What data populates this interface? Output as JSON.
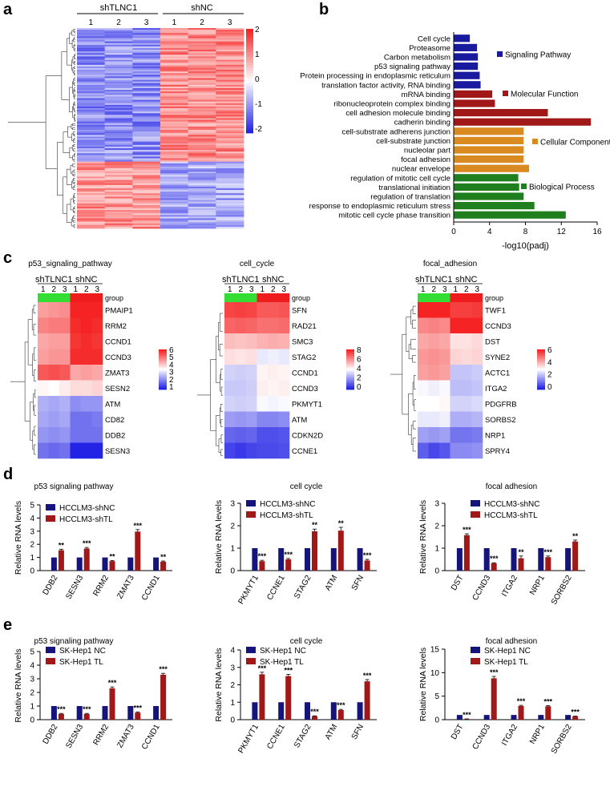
{
  "panels": {
    "a": "a",
    "b": "b",
    "c": "c",
    "d": "d",
    "e": "e"
  },
  "panel_a": {
    "groups": [
      {
        "label": "shTLNC1",
        "samples": [
          "1",
          "2",
          "3"
        ]
      },
      {
        "label": "shNC",
        "samples": [
          "1",
          "2",
          "3"
        ]
      }
    ],
    "colorbar": [
      "2",
      "1",
      "0",
      "-1",
      "-2"
    ],
    "colors": {
      "high": "#ff2020",
      "mid": "#ffffff",
      "low": "#2222ee"
    }
  },
  "chart_data": [
    {
      "panel": "b",
      "type": "bar",
      "orientation": "horizontal",
      "xlabel": "-log10(padj)",
      "xlim": [
        0,
        16
      ],
      "xticks": [
        "0",
        "4",
        "8",
        "12",
        "16"
      ],
      "categories": [
        "Cell cycle",
        "Proteasome",
        "Carbon metabolism",
        "p53 signaling pathway",
        "Protein processing in endoplasmic reticulum",
        "translation factor activity, RNA binding",
        "mRNA binding",
        "ribonucleoprotein complex binding",
        "cell adhesion molecule binding",
        "cadherin binding",
        "cell-substrate adherens junction",
        "cell-substrate junction",
        "nucleolar part",
        "focal adhesion",
        "nuclear envelope",
        "regulation of mitotic cell cycle",
        "translational initiation",
        "regulation of translation",
        "response to endoplasmic reticulum stress",
        "mitotic cell cycle phase transition"
      ],
      "values": [
        1.8,
        2.6,
        2.7,
        2.7,
        2.9,
        3.0,
        4.3,
        4.6,
        10.5,
        15.3,
        7.8,
        7.8,
        7.8,
        7.8,
        8.4,
        7.2,
        7.3,
        7.8,
        9.0,
        12.5
      ],
      "groups": [
        0,
        0,
        0,
        0,
        0,
        0,
        1,
        1,
        1,
        1,
        2,
        2,
        2,
        2,
        2,
        3,
        3,
        3,
        3,
        3
      ],
      "legend": [
        {
          "name": "Signaling Pathway",
          "color": "#1a1a9e"
        },
        {
          "name": "Molecular Function",
          "color": "#a01818"
        },
        {
          "name": "Cellular Component",
          "color": "#d98a20"
        },
        {
          "name": "Biological Process",
          "color": "#1f7f1f"
        }
      ]
    },
    {
      "panel": "c",
      "type": "heatmap",
      "title": "p53_signaling_pathway",
      "groups": [
        "shTLNC1",
        "shNC"
      ],
      "samples": [
        "1",
        "2",
        "3",
        "1",
        "2",
        "3"
      ],
      "group_row": "group",
      "rows": [
        "PMAIP1",
        "RRM2",
        "CCND1",
        "CCND3",
        "ZMAT3",
        "SESN2",
        "ATM",
        "CD82",
        "DDB2",
        "SESN3"
      ],
      "values": [
        [
          4.6,
          4.7,
          4.8,
          6.0,
          6.0,
          6.0
        ],
        [
          4.9,
          5.0,
          5.0,
          5.9,
          6.0,
          5.9
        ],
        [
          4.5,
          4.6,
          4.6,
          5.8,
          5.9,
          5.8
        ],
        [
          4.6,
          4.7,
          4.7,
          5.9,
          5.9,
          5.9
        ],
        [
          5.4,
          5.5,
          5.4,
          4.5,
          4.6,
          4.5
        ],
        [
          3.6,
          3.5,
          3.7,
          3.9,
          3.9,
          4.0
        ],
        [
          2.6,
          2.5,
          2.6,
          2.2,
          2.3,
          2.3
        ],
        [
          2.5,
          2.4,
          2.5,
          1.9,
          1.9,
          2.0
        ],
        [
          2.3,
          2.2,
          2.3,
          1.9,
          1.9,
          1.9
        ],
        [
          1.9,
          1.8,
          1.9,
          1.0,
          1.0,
          1.0
        ]
      ],
      "colorbar": {
        "ticks": [
          "6",
          "5",
          "4",
          "3",
          "2",
          "1"
        ],
        "min": 1,
        "max": 6
      }
    },
    {
      "panel": "c",
      "type": "heatmap",
      "title": "cell_cycle",
      "groups": [
        "shTLNC1",
        "shNC"
      ],
      "samples": [
        "1",
        "2",
        "3",
        "1",
        "2",
        "3"
      ],
      "group_row": "group",
      "rows": [
        "SFN",
        "RAD21",
        "SMC3",
        "STAG2",
        "CCND1",
        "CCND3",
        "PKMYT1",
        "ATM",
        "CDKN2D",
        "CCNE1"
      ],
      "values": [
        [
          7.4,
          7.5,
          7.4,
          7.0,
          7.0,
          7.1
        ],
        [
          6.8,
          6.9,
          6.8,
          6.6,
          6.6,
          6.7
        ],
        [
          5.2,
          5.1,
          5.2,
          5.4,
          5.5,
          5.4
        ],
        [
          4.6,
          4.5,
          4.6,
          3.6,
          3.7,
          3.6
        ],
        [
          3.2,
          3.1,
          3.2,
          4.2,
          4.3,
          4.2
        ],
        [
          3.0,
          3.0,
          3.1,
          4.3,
          4.2,
          4.3
        ],
        [
          3.2,
          3.1,
          3.2,
          3.9,
          3.8,
          3.9
        ],
        [
          2.2,
          2.1,
          2.2,
          1.8,
          1.8,
          1.9
        ],
        [
          1.2,
          1.1,
          1.2,
          0.8,
          0.8,
          0.9
        ],
        [
          0.6,
          0.4,
          0.6,
          0.7,
          0.7,
          0.8
        ]
      ],
      "colorbar": {
        "ticks": [
          "8",
          "6",
          "4",
          "2",
          "0"
        ],
        "min": 0,
        "max": 8
      }
    },
    {
      "panel": "c",
      "type": "heatmap",
      "title": "focal_adhesion",
      "groups": [
        "shTLNC1",
        "shNC"
      ],
      "samples": [
        "1",
        "2",
        "3",
        "1",
        "2",
        "3"
      ],
      "group_row": "group",
      "rows": [
        "TWF1",
        "CCND3",
        "DST",
        "SYNE2",
        "ACTC1",
        "ITGA2",
        "PDGFRB",
        "SORBS2",
        "NRP1",
        "SPRY4"
      ],
      "values": [
        [
          6.2,
          6.3,
          6.2,
          5.6,
          5.6,
          5.7
        ],
        [
          4.6,
          4.7,
          4.6,
          6.0,
          6.0,
          6.1
        ],
        [
          4.2,
          4.3,
          4.2,
          3.4,
          3.4,
          3.5
        ],
        [
          4.4,
          4.5,
          4.4,
          3.6,
          3.5,
          3.6
        ],
        [
          4.3,
          4.4,
          4.3,
          2.2,
          2.2,
          2.3
        ],
        [
          2.9,
          2.8,
          2.9,
          2.1,
          2.1,
          2.2
        ],
        [
          3.0,
          3.0,
          3.1,
          2.4,
          2.4,
          2.5
        ],
        [
          2.7,
          2.7,
          2.8,
          1.9,
          1.9,
          2.0
        ],
        [
          1.7,
          1.6,
          1.7,
          1.1,
          1.1,
          1.2
        ],
        [
          0.8,
          0.5,
          0.7,
          1.4,
          1.4,
          1.5
        ]
      ],
      "colorbar": {
        "ticks": [
          "6",
          "4",
          "2",
          "0"
        ],
        "min": 0,
        "max": 6
      }
    },
    {
      "panel": "d",
      "type": "bar",
      "title": "p53 signaling pathway",
      "ylabel": "Relative RNA levels",
      "ylim": [
        0,
        5
      ],
      "yticks": [
        "0",
        "1",
        "2",
        "3",
        "4",
        "5"
      ],
      "categories": [
        "DDB2",
        "SESN3",
        "RRM2",
        "ZMAT3",
        "CCND1"
      ],
      "series": [
        {
          "name": "HCCLM3-shNC",
          "values": [
            1,
            1,
            1,
            1,
            1
          ],
          "color": "#14147a"
        },
        {
          "name": "HCCLM3-shTL",
          "values": [
            1.55,
            1.68,
            0.72,
            2.97,
            0.68
          ],
          "errors": [
            0.08,
            0.08,
            0.05,
            0.15,
            0.05
          ],
          "color": "#a01818"
        }
      ],
      "significance": [
        "**",
        "***",
        "**",
        "***",
        "**"
      ]
    },
    {
      "panel": "d",
      "type": "bar",
      "title": "cell cycle",
      "ylabel": "Relative RNA levels",
      "ylim": [
        0,
        3
      ],
      "yticks": [
        "0",
        "1",
        "2",
        "3"
      ],
      "categories": [
        "PKMYT1",
        "CCNE1",
        "STAG2",
        "ATM",
        "SFN"
      ],
      "series": [
        {
          "name": "HCCLM3-shNC",
          "values": [
            1,
            1,
            1,
            1,
            1
          ],
          "color": "#14147a"
        },
        {
          "name": "HCCLM3-shTL",
          "values": [
            0.42,
            0.5,
            1.75,
            1.78,
            0.45
          ],
          "errors": [
            0.04,
            0.04,
            0.1,
            0.15,
            0.05
          ],
          "color": "#a01818"
        }
      ],
      "significance": [
        "***",
        "***",
        "**",
        "**",
        "***"
      ]
    },
    {
      "panel": "d",
      "type": "bar",
      "title": "focal adhesion",
      "ylabel": "Relative RNA levels",
      "ylim": [
        0,
        3
      ],
      "yticks": [
        "0",
        "1",
        "2",
        "3"
      ],
      "categories": [
        "DST",
        "CCND3",
        "ITGA2",
        "NRP1",
        "SORBS2"
      ],
      "series": [
        {
          "name": "HCCLM3-shNC",
          "values": [
            1,
            1,
            1,
            1,
            1
          ],
          "color": "#14147a"
        },
        {
          "name": "HCCLM3-shTL",
          "values": [
            1.58,
            0.33,
            0.55,
            0.6,
            1.3
          ],
          "errors": [
            0.06,
            0.02,
            0.1,
            0.05,
            0.06
          ],
          "color": "#a01818"
        }
      ],
      "significance": [
        "***",
        "***",
        "**",
        "***",
        "**"
      ]
    },
    {
      "panel": "e",
      "type": "bar",
      "title": "p53 signaling pathway",
      "ylabel": "Relative RNA levels",
      "ylim": [
        0,
        5
      ],
      "yticks": [
        "0",
        "1",
        "2",
        "3",
        "4",
        "5"
      ],
      "categories": [
        "DDB2",
        "SESN3",
        "RRM2",
        "ZMAT3",
        "CCND1"
      ],
      "series": [
        {
          "name": "SK-Hep1 NC",
          "values": [
            1,
            1,
            1,
            1,
            1
          ],
          "color": "#14147a"
        },
        {
          "name": "SK-Hep1 TL",
          "values": [
            0.42,
            0.42,
            2.3,
            0.52,
            3.3
          ],
          "errors": [
            0.04,
            0.04,
            0.1,
            0.05,
            0.1
          ],
          "color": "#a01818"
        }
      ],
      "significance": [
        "***",
        "***",
        "***",
        "***",
        "***"
      ]
    },
    {
      "panel": "e",
      "type": "bar",
      "title": "cell cycle",
      "ylabel": "Relative RNA levels",
      "ylim": [
        0,
        4
      ],
      "yticks": [
        "0",
        "1",
        "2",
        "3",
        "4"
      ],
      "categories": [
        "PKMYT1",
        "CCNE1",
        "STAG2",
        "ATM",
        "SFN"
      ],
      "series": [
        {
          "name": "SK-Hep1 NC",
          "values": [
            1,
            1,
            1,
            1,
            1
          ],
          "color": "#14147a"
        },
        {
          "name": "SK-Hep1 TL",
          "values": [
            2.6,
            2.5,
            0.2,
            0.55,
            2.2
          ],
          "errors": [
            0.12,
            0.1,
            0.02,
            0.04,
            0.1
          ],
          "color": "#a01818"
        }
      ],
      "significance": [
        "***",
        "***",
        "***",
        "***",
        "***"
      ]
    },
    {
      "panel": "e",
      "type": "bar",
      "title": "focal adhesion",
      "ylabel": "Relative RNA levels",
      "ylim": [
        0,
        15
      ],
      "yticks": [
        "0",
        "5",
        "10",
        "15"
      ],
      "categories": [
        "DST",
        "CCND3",
        "ITGA2",
        "NRP1",
        "SORBS2"
      ],
      "series": [
        {
          "name": "SK-Hep1 NC",
          "values": [
            1,
            1,
            1,
            1,
            1
          ],
          "color": "#14147a"
        },
        {
          "name": "SK-Hep1 TL",
          "values": [
            0.15,
            8.8,
            2.9,
            2.85,
            0.7
          ],
          "errors": [
            0.02,
            0.4,
            0.15,
            0.15,
            0.05
          ],
          "color": "#a01818"
        }
      ],
      "significance": [
        "***",
        "***",
        "***",
        "***",
        "***"
      ]
    }
  ]
}
